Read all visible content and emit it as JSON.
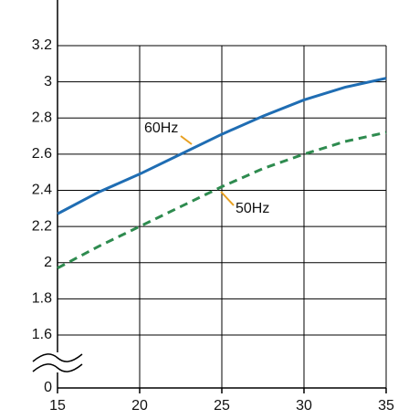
{
  "chart_data": {
    "type": "line",
    "x": [
      15,
      17.5,
      20,
      22.5,
      25,
      27.5,
      30,
      32.5,
      35
    ],
    "series": [
      {
        "name": "60Hz",
        "color": "#1f6db3",
        "dash": false,
        "values": [
          2.27,
          2.39,
          2.49,
          2.6,
          2.71,
          2.81,
          2.9,
          2.97,
          3.02
        ]
      },
      {
        "name": "50Hz",
        "color": "#2e8b4f",
        "dash": true,
        "values": [
          1.97,
          2.09,
          2.2,
          2.31,
          2.42,
          2.52,
          2.6,
          2.67,
          2.72
        ]
      }
    ],
    "xlim": [
      15,
      35
    ],
    "xticks": [
      15,
      20,
      25,
      30,
      35
    ],
    "ylim": [
      0,
      3.2
    ],
    "yticks": [
      0,
      1.6,
      1.8,
      2.0,
      2.2,
      2.4,
      2.6,
      2.8,
      3.0,
      3.2
    ],
    "axis_break": [
      0,
      1.6
    ],
    "grid": true
  }
}
